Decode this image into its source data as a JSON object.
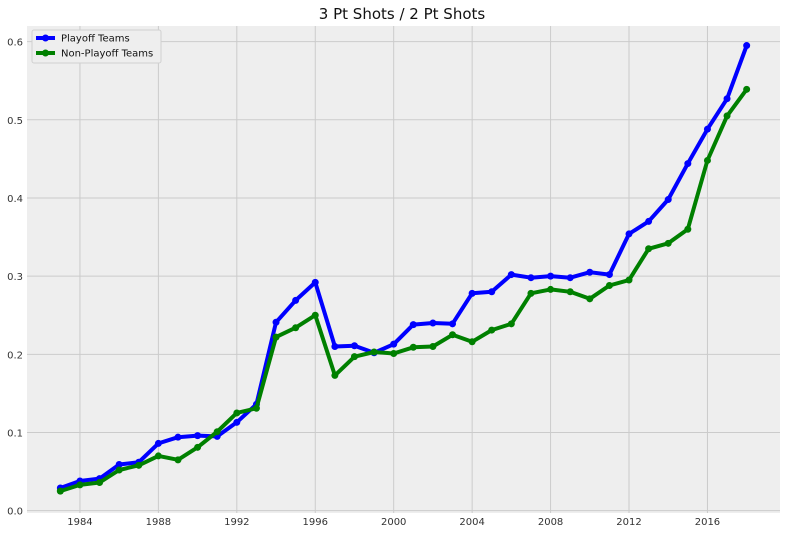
{
  "chart_data": {
    "type": "line",
    "title": "3 Pt Shots / 2 Pt Shots",
    "xlabel": "",
    "ylabel": "",
    "x": [
      1983,
      1984,
      1985,
      1986,
      1987,
      1988,
      1989,
      1990,
      1991,
      1992,
      1993,
      1994,
      1995,
      1996,
      1997,
      1998,
      1999,
      2000,
      2001,
      2002,
      2003,
      2004,
      2005,
      2006,
      2007,
      2008,
      2009,
      2010,
      2011,
      2012,
      2013,
      2014,
      2015,
      2016,
      2017,
      2018
    ],
    "xlim": [
      1981.3,
      2019.7
    ],
    "ylim": [
      -0.003,
      0.62
    ],
    "x_ticks": [
      1984,
      1988,
      1992,
      1996,
      2000,
      2004,
      2008,
      2012,
      2016
    ],
    "x_tick_labels": [
      "1984",
      "1988",
      "1992",
      "1996",
      "2000",
      "2004",
      "2008",
      "2012",
      "2016"
    ],
    "y_ticks": [
      0.0,
      0.1,
      0.2,
      0.3,
      0.4,
      0.5,
      0.6
    ],
    "y_tick_labels": [
      "0.0",
      "0.1",
      "0.2",
      "0.3",
      "0.4",
      "0.5",
      "0.6"
    ],
    "grid": true,
    "legend_position": "top-left",
    "background_color": "#eeeeee",
    "grid_color": "#cbcbcb",
    "series": [
      {
        "name": "Playoff Teams",
        "color": "#0000ff",
        "values": [
          0.029,
          0.038,
          0.041,
          0.059,
          0.062,
          0.086,
          0.094,
          0.096,
          0.095,
          0.113,
          0.136,
          0.241,
          0.269,
          0.292,
          0.21,
          0.211,
          0.202,
          0.213,
          0.238,
          0.24,
          0.239,
          0.278,
          0.28,
          0.302,
          0.298,
          0.3,
          0.298,
          0.305,
          0.302,
          0.354,
          0.37,
          0.398,
          0.444,
          0.488,
          0.527,
          0.595
        ]
      },
      {
        "name": "Non-Playoff Teams",
        "color": "#008000",
        "values": [
          0.025,
          0.033,
          0.036,
          0.052,
          0.058,
          0.07,
          0.065,
          0.081,
          0.101,
          0.125,
          0.131,
          0.222,
          0.234,
          0.25,
          0.173,
          0.197,
          0.203,
          0.201,
          0.209,
          0.21,
          0.225,
          0.216,
          0.231,
          0.239,
          0.278,
          0.283,
          0.28,
          0.271,
          0.288,
          0.295,
          0.335,
          0.342,
          0.36,
          0.448,
          0.505,
          0.539
        ]
      }
    ]
  }
}
